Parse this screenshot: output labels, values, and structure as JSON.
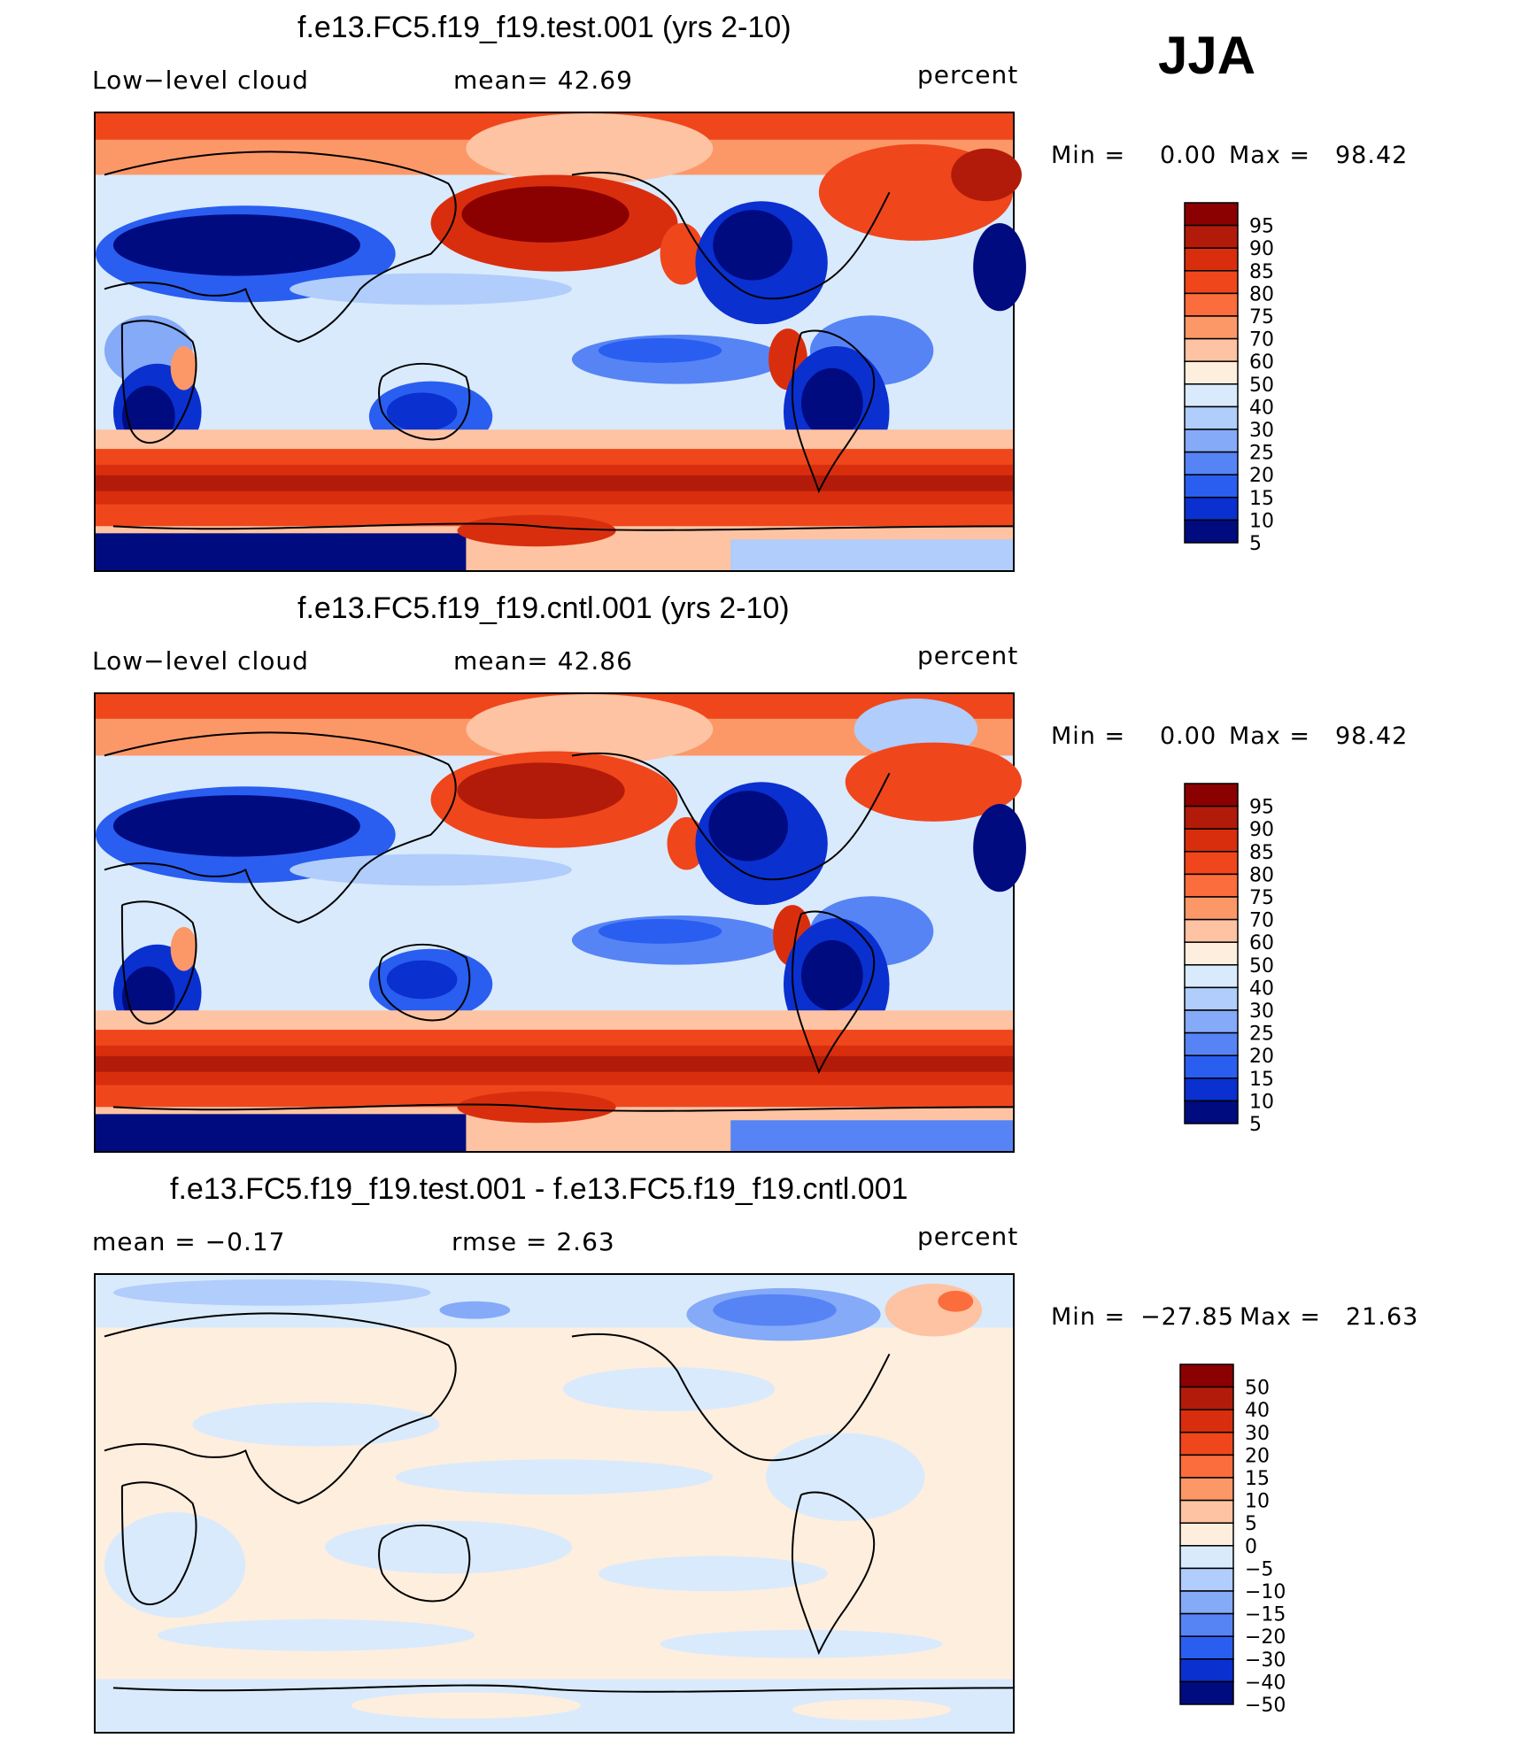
{
  "season": "JJA",
  "panels": [
    {
      "title": "f.e13.FC5.f19_f19.test.001 (yrs 2-10)",
      "left_label": "Low−level cloud",
      "center_label": "mean=   42.69",
      "units": "percent",
      "min_label": "Min =",
      "min_value": "0.00",
      "max_label": "Max =",
      "max_value": "98.42",
      "levels": [
        "95",
        "90",
        "85",
        "80",
        "75",
        "70",
        "60",
        "50",
        "40",
        "30",
        "25",
        "20",
        "15",
        "10",
        "5"
      ],
      "colors": [
        "#8b0000",
        "#b21b0a",
        "#d92e0e",
        "#f0461c",
        "#fb6d3c",
        "#fc9868",
        "#fdc3a2",
        "#feeede",
        "#d9eafc",
        "#b0cdfb",
        "#84aaf8",
        "#5684f5",
        "#2a5ef0",
        "#0a30d0",
        "#000b80"
      ]
    },
    {
      "title": "f.e13.FC5.f19_f19.cntl.001 (yrs 2-10)",
      "left_label": "Low−level cloud",
      "center_label": "mean=   42.86",
      "units": "percent",
      "min_label": "Min =",
      "min_value": "0.00",
      "max_label": "Max =",
      "max_value": "98.42",
      "levels": [
        "95",
        "90",
        "85",
        "80",
        "75",
        "70",
        "60",
        "50",
        "40",
        "30",
        "25",
        "20",
        "15",
        "10",
        "5"
      ],
      "colors": [
        "#8b0000",
        "#b21b0a",
        "#d92e0e",
        "#f0461c",
        "#fb6d3c",
        "#fc9868",
        "#fdc3a2",
        "#feeede",
        "#d9eafc",
        "#b0cdfb",
        "#84aaf8",
        "#5684f5",
        "#2a5ef0",
        "#0a30d0",
        "#000b80"
      ]
    },
    {
      "title": "f.e13.FC5.f19_f19.test.001 - f.e13.FC5.f19_f19.cntl.001",
      "left_label": "mean =   −0.17",
      "center_label": "rmse =    2.63",
      "units": "percent",
      "min_label": "Min =",
      "min_value": "−27.85",
      "max_label": "Max =",
      "max_value": "21.63",
      "levels": [
        "50",
        "40",
        "30",
        "20",
        "15",
        "10",
        "5",
        "0",
        "−5",
        "−10",
        "−15",
        "−20",
        "−30",
        "−40",
        "−50"
      ],
      "colors": [
        "#8b0000",
        "#b21b0a",
        "#d92e0e",
        "#f0461c",
        "#fb6d3c",
        "#fc9868",
        "#fdc3a2",
        "#feeede",
        "#d9eafc",
        "#b0cdfb",
        "#84aaf8",
        "#5684f5",
        "#2a5ef0",
        "#0a30d0",
        "#000b80"
      ]
    }
  ]
}
